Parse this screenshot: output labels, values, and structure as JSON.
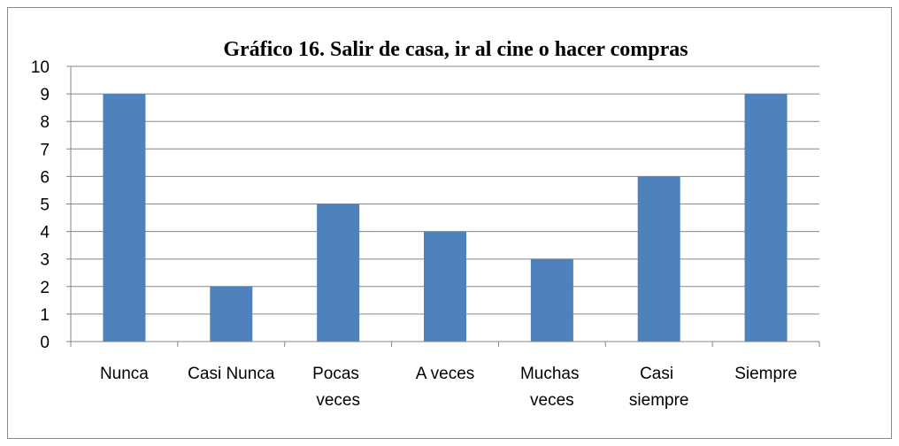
{
  "chart_data": {
    "type": "bar",
    "title": "Gráfico 16. Salir de casa, ir al cine o hacer compras",
    "categories": [
      "Nunca",
      "Casi Nunca",
      "Pocas veces",
      "A veces",
      "Muchas veces",
      "Casi siempre",
      "Siempre"
    ],
    "values": [
      9,
      2,
      5,
      4,
      3,
      6,
      9
    ],
    "color": "#4f81bd",
    "ylim": [
      0,
      10
    ],
    "yticks": [
      0,
      1,
      2,
      3,
      4,
      5,
      6,
      7,
      8,
      9,
      10
    ],
    "grid": true
  }
}
